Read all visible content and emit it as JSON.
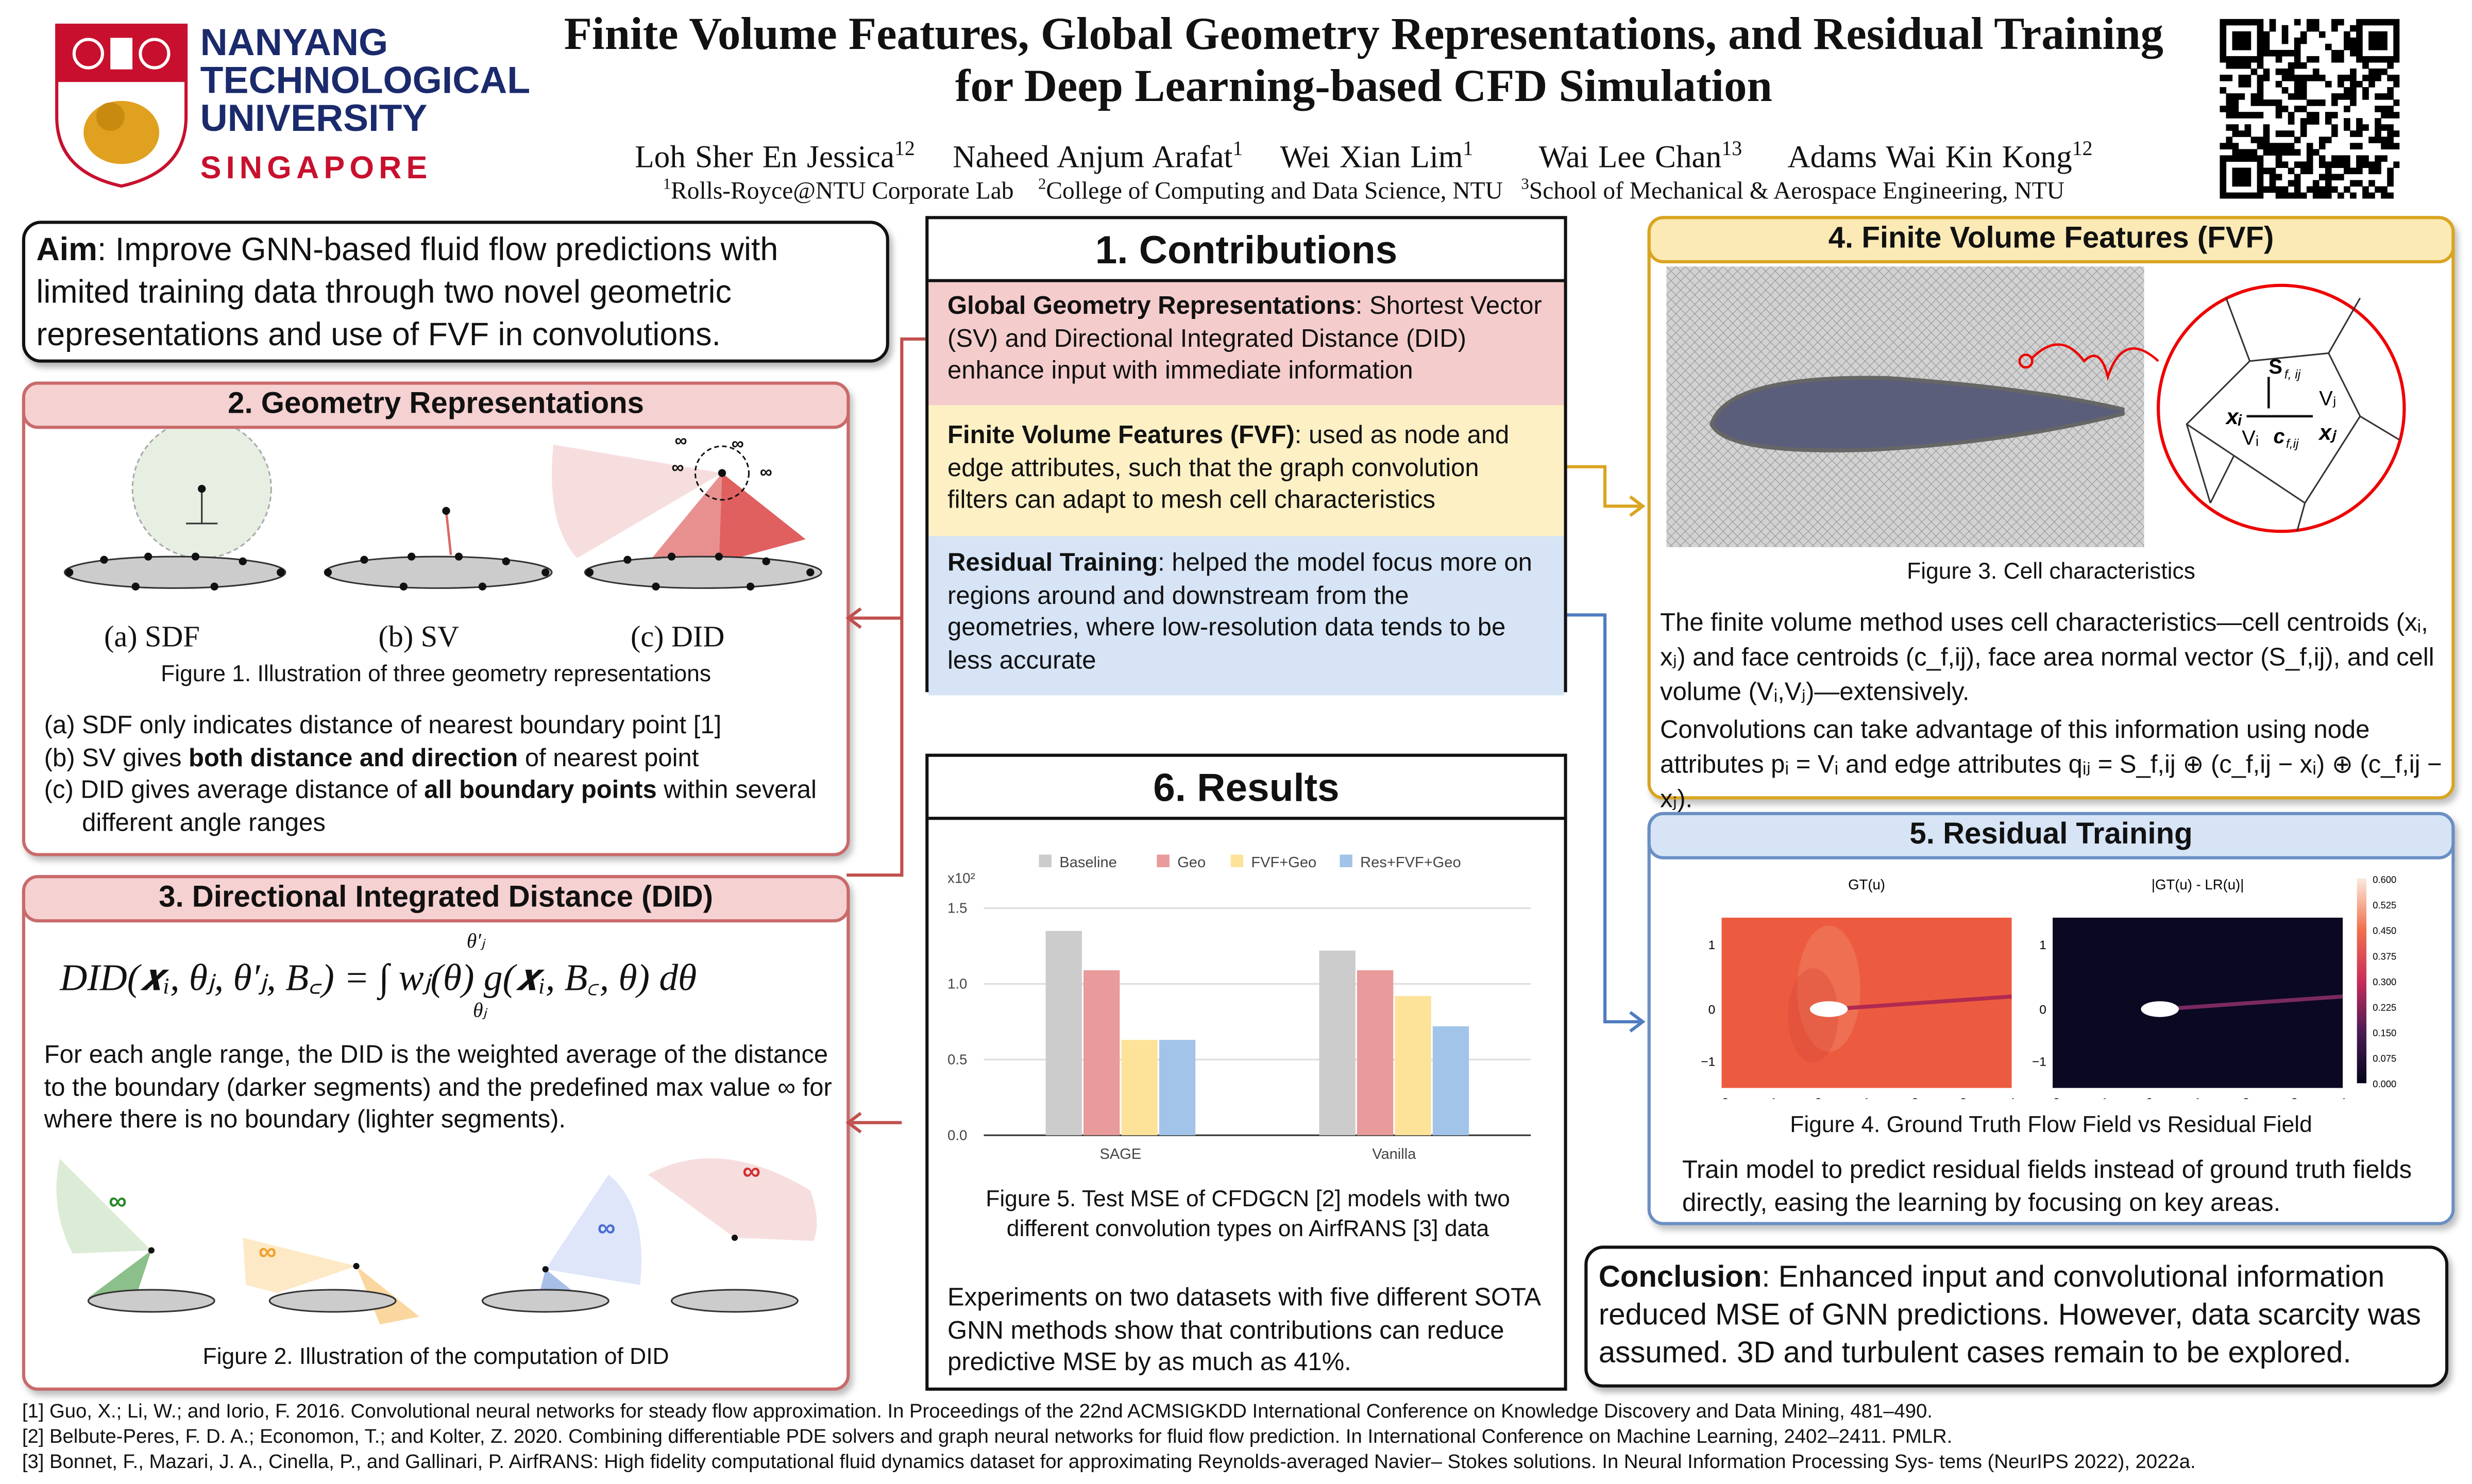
{
  "header": {
    "university": [
      "NANYANG",
      "TECHNOLOGICAL",
      "UNIVERSITY"
    ],
    "country": "SINGAPORE",
    "title_line1": "Finite Volume Features, Global Geometry Representations, and Residual Training",
    "title_line2": "for Deep Learning-based CFD Simulation",
    "authors": [
      {
        "name": "Loh Sher En Jessica",
        "aff": "12"
      },
      {
        "name": "Naheed Anjum Arafat",
        "aff": "1"
      },
      {
        "name": "Wei Xian Lim",
        "aff": "1"
      },
      {
        "name": "Wai Lee Chan",
        "aff": "13"
      },
      {
        "name": "Adams Wai Kin Kong",
        "aff": "12"
      }
    ],
    "affiliations": [
      {
        "num": "1",
        "text": "Rolls-Royce@NTU Corporate Lab"
      },
      {
        "num": "2",
        "text": "College of Computing and Data Science, NTU"
      },
      {
        "num": "3",
        "text": "School of Mechanical & Aerospace Engineering, NTU"
      }
    ]
  },
  "aim": {
    "label": "Aim",
    "text": ": Improve GNN-based fluid flow predictions with limited training data through two novel geometric representations and use of FVF in convolutions."
  },
  "geometry": {
    "title": "2. Geometry Representations",
    "labels": [
      "(a) SDF",
      "(b) SV",
      "(c) DID"
    ],
    "inf": "∞",
    "caption": "Figure 1. Illustration of three geometry representations",
    "items": [
      {
        "pre": "(a) SDF only indicates distance of nearest boundary point [1]",
        "bold": "",
        "post": ""
      },
      {
        "pre": "(b) SV gives ",
        "bold": "both distance and direction",
        "post": " of nearest point"
      },
      {
        "pre": "(c) DID gives average distance of ",
        "bold": "all boundary points",
        "post": " within several different angle ranges"
      }
    ]
  },
  "did": {
    "title": "3. Directional Integrated Distance (DID)",
    "formula": "DID(𝒙ᵢ, θⱼ, θ′ⱼ, B꜀) = ∫ wⱼ(θ) g(𝒙ᵢ, B꜀, θ) dθ",
    "lower": "θⱼ",
    "upper": "θ′ⱼ",
    "text": "For each angle range, the DID is the weighted average of the distance to the boundary (darker segments) and the predefined max value ∞ for where there is no boundary (lighter segments).",
    "inf": "∞",
    "caption": "Figure 2. Illustration of the computation of DID"
  },
  "contributions": {
    "title": "1. Contributions",
    "items": [
      {
        "bold": "Global Geometry Representations",
        "text": ": Shortest Vector (SV) and Directional Integrated Distance (DID) enhance input with immediate information",
        "color": "#f5cccc"
      },
      {
        "bold": "Finite Volume Features (FVF)",
        "text": ": used as node and edge attributes, such that the graph convolution filters can adapt to mesh cell characteristics",
        "color": "#fdf0c4"
      },
      {
        "bold": "Residual Training",
        "text": ": helped the model focus more on regions around and downstream from the geometries, where low-resolution data tends to be less accurate",
        "color": "#d6e4f6"
      }
    ]
  },
  "results": {
    "title": "6. Results",
    "caption": "Figure 5. Test MSE of CFDGCN [2] models with two different convolution types on AirfRANS [3] data",
    "text": "Experiments on two datasets with five different SOTA GNN methods show that contributions can reduce predictive MSE by as much as 41%."
  },
  "chart_data": {
    "type": "bar",
    "categories": [
      "SAGE",
      "Vanilla"
    ],
    "series": [
      {
        "name": "Baseline",
        "values": [
          1.35,
          1.22
        ],
        "color": "#cccccc"
      },
      {
        "name": "Geo",
        "values": [
          1.09,
          1.09
        ],
        "color": "#e99a9a"
      },
      {
        "name": "FVF+Geo",
        "values": [
          0.63,
          0.92
        ],
        "color": "#fde39a"
      },
      {
        "name": "Res+FVF+Geo",
        "values": [
          0.63,
          0.72
        ],
        "color": "#a2c4e8"
      }
    ],
    "ylim": [
      0,
      1.5
    ],
    "yticks": [
      "0.0",
      "0.5",
      "1.0",
      "1.5"
    ],
    "yscale_label": "x10²",
    "legend": "top",
    "grid": true
  },
  "fvf": {
    "title": "4. Finite Volume Features (FVF)",
    "caption": "Figure 3. Cell characteristics",
    "zoom_labels": {
      "s": "S",
      "sub_s": "f, ij",
      "xi": "xᵢ",
      "vi": "Vᵢ",
      "c": "c",
      "sub_c": "f,ij",
      "xj": "xⱼ",
      "vj": "Vⱼ"
    },
    "text1": "The finite volume method uses cell characteristics—cell centroids (xᵢ, xⱼ) and face centroids (c_f,ij), face area normal vector (S_f,ij), and cell volume (Vᵢ,Vⱼ)—extensively.",
    "text2": "Convolutions can take advantage of this information using node attributes pᵢ = Vᵢ and edge attributes qᵢⱼ = S_f,ij ⊕ (c_f,ij − xᵢ) ⊕ (c_f,ij − xⱼ)."
  },
  "residual": {
    "title": "5. Residual Training",
    "plot_titles": [
      "GT(u)",
      "|GT(u) - LR(u)|"
    ],
    "xticks": [
      "−2",
      "−1",
      "0",
      "1",
      "2",
      "3",
      "4"
    ],
    "yticks": [
      "1",
      "0",
      "−1"
    ],
    "colorbar": [
      "0.600",
      "0.525",
      "0.450",
      "0.375",
      "0.300",
      "0.225",
      "0.150",
      "0.075",
      "0.000"
    ],
    "caption": "Figure 4. Ground Truth Flow Field vs Residual Field",
    "text": "Train model to predict residual fields instead of ground truth fields directly, easing the learning by focusing on key areas."
  },
  "conclusion": {
    "label": "Conclusion",
    "text": ": Enhanced input and convolutional information reduced MSE of GNN predictions. However, data scarcity was assumed. 3D and turbulent cases remain to be explored."
  },
  "references": [
    "[1] Guo, X.; Li, W.; and Iorio, F. 2016. Convolutional neural networks for steady flow approximation. In Proceedings of the 22nd ACMSIGKDD International Conference on Knowledge Discovery and Data Mining, 481–490.",
    "[2] Belbute-Peres, F. D. A.; Economon, T.; and Kolter, Z. 2020. Combining differentiable PDE solvers and graph neural networks for fluid flow prediction. In International Conference on Machine Learning, 2402–2411. PMLR.",
    "[3] Bonnet, F., Mazari, J. A., Cinella, P., and Gallinari, P. AirfRANS: High fidelity computational fluid dynamics dataset for approximating Reynolds-averaged Navier– Stokes solutions. In Neural Information Processing Sys- tems (NeurIPS 2022), 2022a."
  ]
}
